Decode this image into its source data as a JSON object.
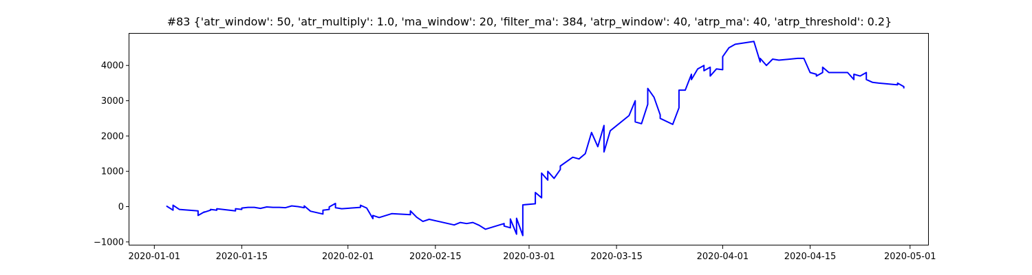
{
  "chart_data": {
    "type": "line",
    "title": "#83 {'atr_window': 50, 'atr_multiply': 1.0, 'ma_window': 20, 'filter_ma': 384, 'atrp_window': 40, 'atrp_ma': 40, 'atrp_threshold': 0.2}",
    "xlabel": "",
    "ylabel": "",
    "xlim": [
      "2019-12-28",
      "2020-05-04"
    ],
    "ylim": [
      -1100,
      4900
    ],
    "grid": false,
    "line_color": "#0000ff",
    "x_ticks": [
      "2020-01-01",
      "2020-01-15",
      "2020-02-01",
      "2020-02-15",
      "2020-03-01",
      "2020-03-15",
      "2020-04-01",
      "2020-04-15",
      "2020-05-01"
    ],
    "y_ticks": [
      -1000,
      0,
      1000,
      2000,
      3000,
      4000
    ],
    "series": [
      {
        "color": "#0000ff",
        "x": [
          "2020-01-03",
          "2020-01-03",
          "2020-01-04",
          "2020-01-04",
          "2020-01-05",
          "2020-01-08",
          "2020-01-08",
          "2020-01-09",
          "2020-01-09",
          "2020-01-10",
          "2020-01-10",
          "2020-01-11",
          "2020-01-11",
          "2020-01-14",
          "2020-01-14",
          "2020-01-15",
          "2020-01-15",
          "2020-01-16",
          "2020-01-17",
          "2020-01-18",
          "2020-01-19",
          "2020-01-20",
          "2020-01-21",
          "2020-01-22",
          "2020-01-23",
          "2020-01-24",
          "2020-01-25",
          "2020-01-25",
          "2020-01-26",
          "2020-01-28",
          "2020-01-28",
          "2020-01-29",
          "2020-01-29",
          "2020-01-30",
          "2020-01-30",
          "2020-01-31",
          "2020-02-03",
          "2020-02-03",
          "2020-02-04",
          "2020-02-05",
          "2020-02-05",
          "2020-02-06",
          "2020-02-08",
          "2020-02-11",
          "2020-02-11",
          "2020-02-12",
          "2020-02-13",
          "2020-02-14",
          "2020-02-14",
          "2020-02-18",
          "2020-02-19",
          "2020-02-20",
          "2020-02-21",
          "2020-02-22",
          "2020-02-23",
          "2020-02-26",
          "2020-02-26",
          "2020-02-27",
          "2020-02-27",
          "2020-02-28",
          "2020-02-28",
          "2020-02-29",
          "2020-02-29",
          "2020-03-02",
          "2020-03-02",
          "2020-03-03",
          "2020-03-03",
          "2020-03-04",
          "2020-03-04",
          "2020-03-05",
          "2020-03-06",
          "2020-03-06",
          "2020-03-08",
          "2020-03-09",
          "2020-03-10",
          "2020-03-11",
          "2020-03-12",
          "2020-03-13",
          "2020-03-13",
          "2020-03-14",
          "2020-03-17",
          "2020-03-18",
          "2020-03-18",
          "2020-03-19",
          "2020-03-20",
          "2020-03-20",
          "2020-03-21",
          "2020-03-22",
          "2020-03-22",
          "2020-03-24",
          "2020-03-25",
          "2020-03-25",
          "2020-03-26",
          "2020-03-27",
          "2020-03-27",
          "2020-03-28",
          "2020-03-29",
          "2020-03-29",
          "2020-03-30",
          "2020-03-30",
          "2020-03-31",
          "2020-04-01",
          "2020-04-01",
          "2020-04-02",
          "2020-04-02",
          "2020-04-03",
          "2020-04-06",
          "2020-04-07",
          "2020-04-07",
          "2020-04-08",
          "2020-04-09",
          "2020-04-10",
          "2020-04-13",
          "2020-04-14",
          "2020-04-15",
          "2020-04-16",
          "2020-04-16",
          "2020-04-17",
          "2020-04-17",
          "2020-04-18",
          "2020-04-21",
          "2020-04-22",
          "2020-04-22",
          "2020-04-23",
          "2020-04-24",
          "2020-04-24",
          "2020-04-25",
          "2020-04-26",
          "2020-04-29",
          "2020-04-29",
          "2020-04-30",
          "2020-04-30"
        ],
        "y": [
          0,
          10,
          -100,
          40,
          -80,
          -120,
          -250,
          -150,
          -160,
          -100,
          -80,
          -100,
          -60,
          -120,
          -60,
          -80,
          -40,
          -20,
          -20,
          -50,
          -10,
          -20,
          -20,
          -30,
          20,
          0,
          -30,
          20,
          -130,
          -210,
          -100,
          -80,
          -10,
          90,
          -30,
          -60,
          -20,
          40,
          -40,
          -340,
          -250,
          -310,
          -200,
          -230,
          -120,
          -300,
          -420,
          -360,
          -360,
          -520,
          -450,
          -480,
          -450,
          -530,
          -640,
          -480,
          -550,
          -600,
          -350,
          -780,
          -330,
          -820,
          50,
          80,
          400,
          250,
          950,
          750,
          1000,
          800,
          1050,
          1150,
          1400,
          1350,
          1500,
          2100,
          1700,
          2300,
          1550,
          2150,
          2580,
          3000,
          2400,
          2350,
          2900,
          3350,
          3100,
          2600,
          2500,
          2330,
          2800,
          3300,
          3300,
          3750,
          3600,
          3900,
          4000,
          3850,
          3950,
          3700,
          3900,
          3880,
          4250,
          4500,
          4500,
          4600,
          4680,
          4100,
          4200,
          4000,
          4180,
          4150,
          4200,
          4200,
          3800,
          3750,
          3700,
          3800,
          3950,
          3800,
          3800,
          3600,
          3750,
          3700,
          3800,
          3600,
          3520,
          3500,
          3450,
          3500,
          3400,
          3350
        ]
      }
    ]
  }
}
